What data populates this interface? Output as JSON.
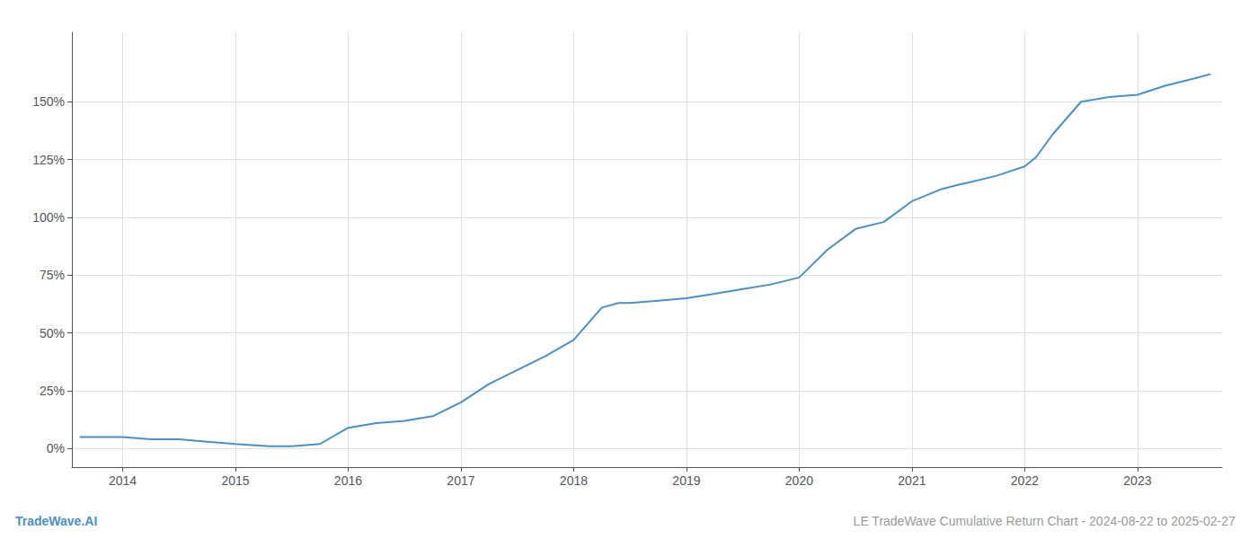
{
  "chart_data": {
    "type": "line",
    "title": "LE TradeWave Cumulative Return Chart - 2024-08-22 to 2025-02-27",
    "annotations": [
      "TradeWave.AI"
    ],
    "color": "#4a90c4",
    "x": [
      2013.62,
      2013.75,
      2014.0,
      2014.25,
      2014.5,
      2014.75,
      2015.0,
      2015.15,
      2015.3,
      2015.5,
      2015.75,
      2016.0,
      2016.25,
      2016.5,
      2016.75,
      2017.0,
      2017.25,
      2017.5,
      2017.75,
      2018.0,
      2018.25,
      2018.4,
      2018.5,
      2018.75,
      2019.0,
      2019.25,
      2019.5,
      2019.75,
      2020.0,
      2020.25,
      2020.5,
      2020.75,
      2021.0,
      2021.25,
      2021.4,
      2021.5,
      2021.75,
      2022.0,
      2022.1,
      2022.25,
      2022.5,
      2022.75,
      2023.0,
      2023.25,
      2023.5,
      2023.65
    ],
    "values": [
      5,
      5,
      5,
      4,
      4,
      3,
      2,
      1.5,
      1,
      1,
      2,
      9,
      11,
      12,
      14,
      20,
      28,
      34,
      40,
      47,
      61,
      63,
      63,
      64,
      65,
      67,
      69,
      71,
      74,
      86,
      95,
      98,
      107,
      112,
      114,
      115,
      118,
      122,
      126,
      136,
      150,
      152,
      153,
      157,
      160,
      162
    ],
    "xlim": [
      2013.55,
      2023.75
    ],
    "xticks": [
      2014,
      2015,
      2016,
      2017,
      2018,
      2019,
      2020,
      2021,
      2022,
      2023
    ],
    "ylim": [
      -8,
      180
    ],
    "yticks": [
      {
        "value": 0,
        "label": "0%"
      },
      {
        "value": 25,
        "label": "25%"
      },
      {
        "value": 50,
        "label": "50%"
      },
      {
        "value": 75,
        "label": "75%"
      },
      {
        "value": 100,
        "label": "100%"
      },
      {
        "value": 125,
        "label": "125%"
      },
      {
        "value": 150,
        "label": "150%"
      }
    ],
    "grid": true
  }
}
